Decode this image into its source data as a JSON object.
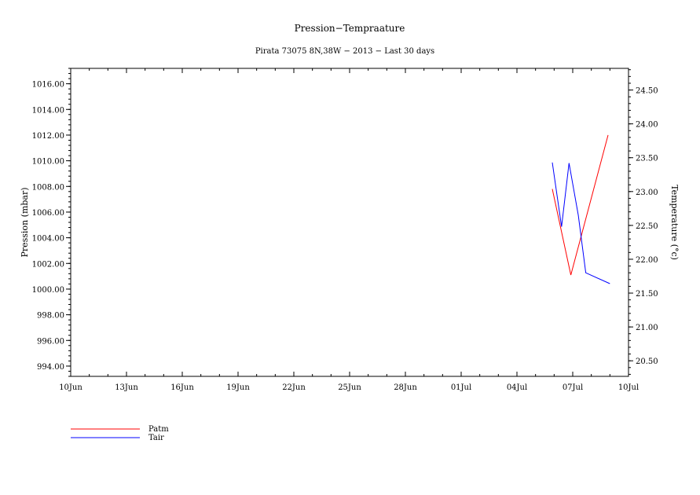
{
  "chart_data": {
    "type": "line",
    "title": "Pression−Tempraature",
    "subtitle": "Pirata 73075 8N,38W − 2013 − Last 30 days",
    "xlabel": "",
    "ylabel_left": "Pression (mbar)",
    "ylabel_right": "Temperature (°c)",
    "x_ticks": [
      "10Jun",
      "13Jun",
      "16Jun",
      "19Jun",
      "22Jun",
      "25Jun",
      "28Jun",
      "01Jul",
      "04Jul",
      "07Jul",
      "10Jul"
    ],
    "xlim": [
      0,
      30
    ],
    "ylim_left": [
      993.2,
      1017.2
    ],
    "ylim_right": [
      20.27,
      24.82
    ],
    "y_ticks_left": [
      "994.00",
      "996.00",
      "998.00",
      "1000.00",
      "1002.00",
      "1004.00",
      "1006.00",
      "1008.00",
      "1010.00",
      "1012.00",
      "1014.00",
      "1016.00"
    ],
    "y_ticks_right": [
      "20.50",
      "21.00",
      "21.50",
      "22.00",
      "22.50",
      "23.00",
      "23.50",
      "24.00",
      "24.50"
    ],
    "legend_position": "bottom-left",
    "series": [
      {
        "name": "Patm",
        "color": "#ff0000",
        "axis": "left",
        "x": [
          25.9,
          26.9,
          28.9
        ],
        "y": [
          1007.8,
          1001.1,
          1012.0
        ]
      },
      {
        "name": "Tair",
        "color": "#0000ff",
        "axis": "right",
        "x": [
          25.9,
          26.4,
          26.8,
          27.3,
          27.7,
          29.0
        ],
        "y": [
          23.43,
          22.48,
          23.42,
          22.65,
          21.8,
          21.64
        ]
      }
    ]
  }
}
